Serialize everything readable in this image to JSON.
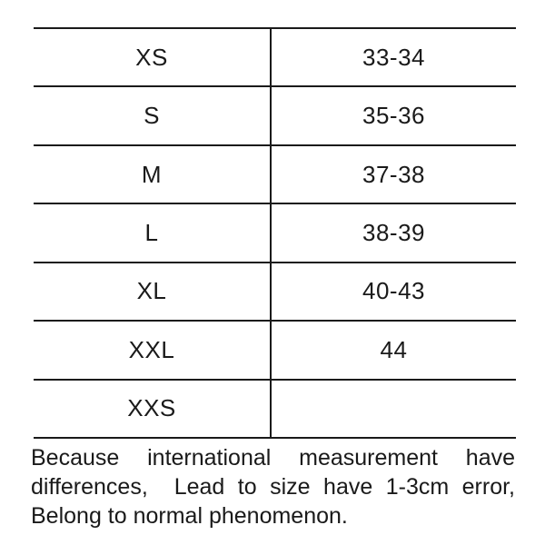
{
  "size_chart": {
    "columns": [
      "size",
      "range"
    ],
    "rows": [
      {
        "size": "XS",
        "range": "33-34"
      },
      {
        "size": "S",
        "range": "35-36"
      },
      {
        "size": "M",
        "range": "37-38"
      },
      {
        "size": "L",
        "range": "38-39"
      },
      {
        "size": "XL",
        "range": "40-43"
      },
      {
        "size": "XXL",
        "range": "44"
      },
      {
        "size": "XXS",
        "range": ""
      }
    ]
  },
  "note": {
    "line1": "Because international measurement have",
    "line2": "differences,  Lead to size have 1-3cm error,",
    "line3": "Belong to normal phenomenon."
  },
  "colors": {
    "text": "#1a1a1a",
    "line": "#1a1a1a",
    "background": "#ffffff"
  }
}
